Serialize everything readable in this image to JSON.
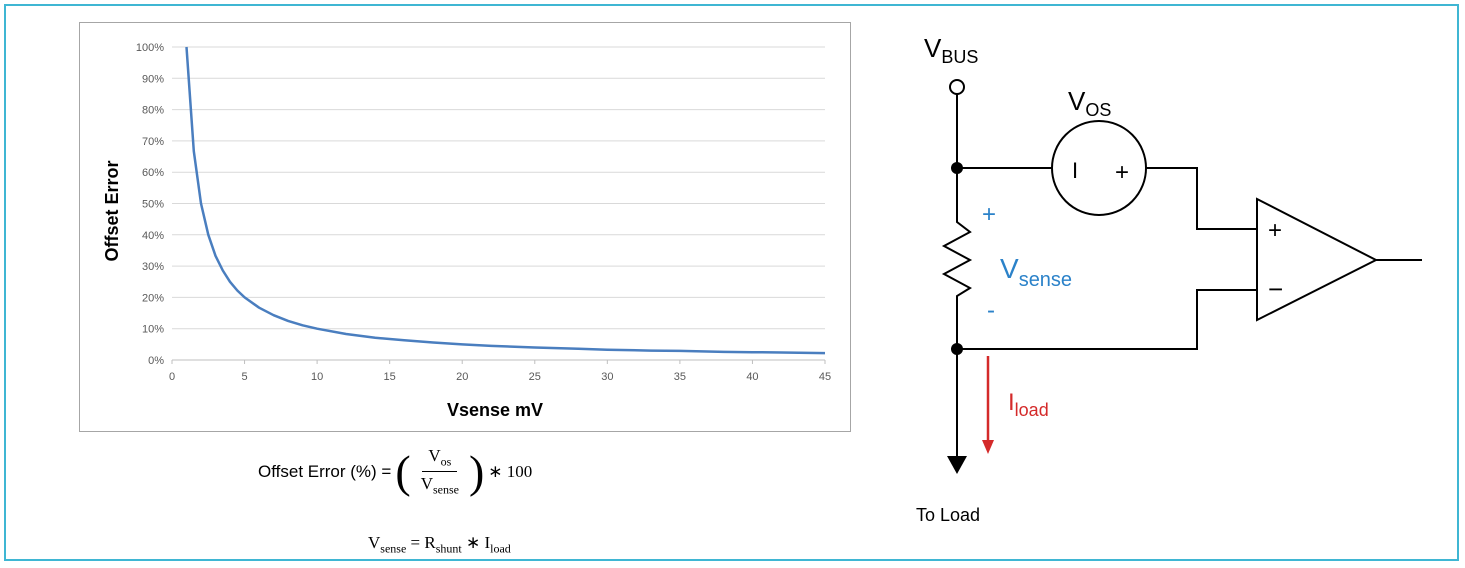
{
  "chart_data": {
    "type": "line",
    "xlabel": "Vsense mV",
    "ylabel": "Offset Error",
    "xlim": [
      0,
      45
    ],
    "ylim": [
      0,
      100
    ],
    "x_ticks": [
      "0",
      "5",
      "10",
      "15",
      "20",
      "25",
      "30",
      "35",
      "40",
      "45"
    ],
    "y_ticks": [
      "0%",
      "10%",
      "20%",
      "30%",
      "40%",
      "50%",
      "60%",
      "70%",
      "80%",
      "90%",
      "100%"
    ],
    "grid": true,
    "series": [
      {
        "color": "#4a7ebf",
        "x": [
          1,
          1.5,
          2,
          2.5,
          3,
          3.5,
          4,
          4.5,
          5,
          6,
          7,
          8,
          9,
          10,
          12,
          14,
          16,
          18,
          20,
          22,
          25,
          28,
          30,
          33,
          35,
          38,
          40,
          42,
          45
        ],
        "y": [
          100,
          66.7,
          50,
          40,
          33.3,
          28.6,
          25,
          22.2,
          20,
          16.7,
          14.3,
          12.5,
          11.1,
          10,
          8.3,
          7.1,
          6.3,
          5.6,
          5,
          4.5,
          4,
          3.6,
          3.3,
          3,
          2.9,
          2.6,
          2.5,
          2.4,
          2.2
        ]
      }
    ]
  },
  "formulas": {
    "offset_lead": "Offset Error (%) =",
    "offset_num": "V",
    "offset_num_sub": "os",
    "offset_den": "V",
    "offset_den_sub": "sense",
    "offset_tail": "∗ 100",
    "vsense_lhs": "V",
    "vsense_lhs_sub": "sense",
    "vsense_eq": " = R",
    "vsense_r_sub": "shunt",
    "vsense_mul": " ∗ I",
    "vsense_i_sub": "load"
  },
  "diagram": {
    "vbus_main": "V",
    "vbus_sub": "BUS",
    "vos_main": "V",
    "vos_sub": "OS",
    "vos_minus_mark": "I",
    "vos_plus_mark": "+",
    "vsense_main": "V",
    "vsense_sub": "sense",
    "vsense_plus": "+",
    "vsense_minus": "-",
    "amp_plus": "+",
    "amp_minus": "−",
    "iload_main": "I",
    "iload_sub": "load",
    "to_load": "To Load",
    "colors": {
      "wire": "#000000",
      "vsense": "#2b82c9",
      "iload": "#d42a2a",
      "frame": "#3fb6d3"
    }
  }
}
